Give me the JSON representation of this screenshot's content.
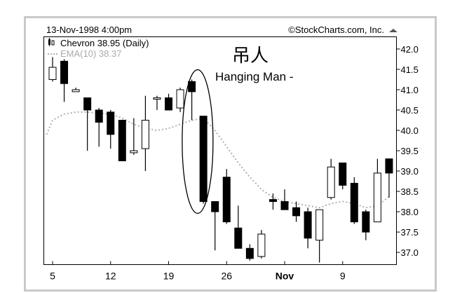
{
  "chart_data": {
    "type": "candlestick",
    "header": {
      "date_label": "13-Nov-1998 4:00pm",
      "credit": "©StockCharts.com, Inc."
    },
    "legend": [
      {
        "name": "Chevron 38.95 (Daily)",
        "icon": "candlestick-icon",
        "color": "#000000"
      },
      {
        "name": "EMA(10) 38.37",
        "icon": "line-icon",
        "color": "#b0b0b0"
      }
    ],
    "annotation": {
      "chinese": "吊人",
      "text": "Hanging Man -",
      "target_index": 14
    },
    "y_axis": {
      "range": [
        36.7,
        42.3
      ],
      "ticks": [
        "42.0",
        "41.5",
        "41.0",
        "40.5",
        "40.0",
        "39.5",
        "39.0",
        "38.5",
        "38.0",
        "37.5",
        "37.0"
      ],
      "tick_values": [
        42.0,
        41.5,
        41.0,
        40.5,
        40.0,
        39.5,
        39.0,
        38.5,
        38.0,
        37.5,
        37.0
      ],
      "position": "right"
    },
    "x_axis": {
      "labels": [
        {
          "text": "5",
          "index": 0,
          "bold": false
        },
        {
          "text": "12",
          "index": 5,
          "bold": false
        },
        {
          "text": "19",
          "index": 10,
          "bold": false
        },
        {
          "text": "26",
          "index": 15,
          "bold": false
        },
        {
          "text": "Nov",
          "index": 20,
          "bold": true
        },
        {
          "text": "9",
          "index": 25,
          "bold": false
        }
      ]
    },
    "candles": [
      {
        "o": 41.25,
        "h": 41.8,
        "l": 41.2,
        "c": 41.55
      },
      {
        "o": 41.7,
        "h": 41.75,
        "l": 40.7,
        "c": 41.15
      },
      {
        "o": 40.95,
        "h": 41.05,
        "l": 40.95,
        "c": 41.0
      },
      {
        "o": 40.8,
        "h": 40.8,
        "l": 39.5,
        "c": 40.5
      },
      {
        "o": 40.5,
        "h": 40.55,
        "l": 39.6,
        "c": 40.2
      },
      {
        "o": 40.45,
        "h": 40.5,
        "l": 39.55,
        "c": 39.9
      },
      {
        "o": 40.25,
        "h": 40.25,
        "l": 39.25,
        "c": 39.25
      },
      {
        "o": 39.45,
        "h": 40.3,
        "l": 39.4,
        "c": 39.5
      },
      {
        "o": 39.55,
        "h": 40.85,
        "l": 39.0,
        "c": 40.25
      },
      {
        "o": 40.8,
        "h": 40.85,
        "l": 40.5,
        "c": 40.8
      },
      {
        "o": 40.8,
        "h": 40.9,
        "l": 40.5,
        "c": 40.5
      },
      {
        "o": 40.55,
        "h": 41.05,
        "l": 40.45,
        "c": 41.0
      },
      {
        "o": 41.2,
        "h": 41.25,
        "l": 40.25,
        "c": 40.95
      },
      {
        "o": 40.35,
        "h": 40.35,
        "l": 38.2,
        "c": 38.25
      },
      {
        "o": 38.25,
        "h": 38.25,
        "l": 37.05,
        "c": 38.0
      },
      {
        "o": 38.85,
        "h": 39.05,
        "l": 37.7,
        "c": 37.75
      },
      {
        "o": 37.6,
        "h": 38.15,
        "l": 37.1,
        "c": 37.1
      },
      {
        "o": 37.1,
        "h": 37.2,
        "l": 36.8,
        "c": 36.85
      },
      {
        "o": 36.9,
        "h": 37.55,
        "l": 36.85,
        "c": 37.45
      },
      {
        "o": 38.3,
        "h": 38.45,
        "l": 38.05,
        "c": 38.25
      },
      {
        "o": 38.25,
        "h": 38.55,
        "l": 38.05,
        "c": 38.05
      },
      {
        "o": 38.1,
        "h": 38.25,
        "l": 37.75,
        "c": 37.9
      },
      {
        "o": 38.0,
        "h": 38.1,
        "l": 37.1,
        "c": 37.35
      },
      {
        "o": 37.3,
        "h": 38.05,
        "l": 36.75,
        "c": 38.05
      },
      {
        "o": 38.35,
        "h": 39.3,
        "l": 38.3,
        "c": 39.1
      },
      {
        "o": 39.2,
        "h": 39.2,
        "l": 38.55,
        "c": 38.65
      },
      {
        "o": 38.7,
        "h": 38.85,
        "l": 37.7,
        "c": 37.75
      },
      {
        "o": 38.0,
        "h": 38.05,
        "l": 37.3,
        "c": 37.5
      },
      {
        "o": 37.75,
        "h": 39.3,
        "l": 37.75,
        "c": 38.95
      },
      {
        "o": 39.3,
        "h": 39.3,
        "l": 38.35,
        "c": 38.95
      }
    ],
    "ema": [
      40.25,
      40.4,
      40.45,
      40.45,
      40.42,
      40.4,
      40.3,
      40.15,
      40.05,
      40.0,
      40.05,
      40.15,
      40.25,
      40.3,
      40.0,
      39.6,
      39.2,
      38.85,
      38.55,
      38.35,
      38.25,
      38.2,
      38.15,
      38.1,
      38.2,
      38.25,
      38.2,
      38.1,
      38.15,
      38.37
    ],
    "grid": false,
    "frame_colors": {
      "outer": "#c9c9c9",
      "plot": "#000000",
      "candle": "#000000",
      "ema": "#b0b0b0"
    }
  }
}
